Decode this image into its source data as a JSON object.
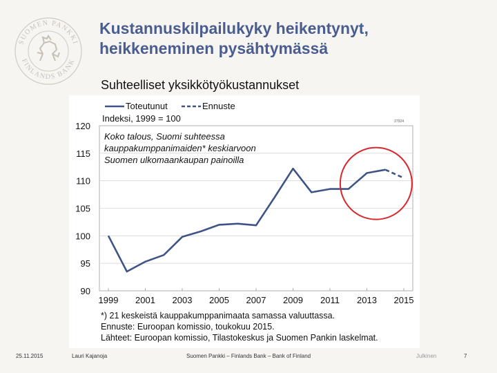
{
  "slide": {
    "title_line1": "Kustannuskilpailukyky heikentynyt,",
    "title_line2": "heikkeneminen pysähtymässä",
    "subtitle": "Suhteelliset yksikkötyökustannukset"
  },
  "logo": {
    "text": "SUOMEN PANKKI · FINLANDS BANK",
    "icon": "lion-emblem-icon",
    "color": "#c9c3ba"
  },
  "footer": {
    "date": "25.11.2015",
    "author": "Lauri Kajanoja",
    "bank": "Suomen Pankki – Finlands Bank – Bank of Finland",
    "unit": "Julkinen",
    "page": "7"
  },
  "chart_data": {
    "type": "line",
    "x": [
      1999,
      2000,
      2001,
      2002,
      2003,
      2004,
      2005,
      2006,
      2007,
      2008,
      2009,
      2010,
      2011,
      2012,
      2013,
      2014,
      2015
    ],
    "series": [
      {
        "name": "Toteutunut",
        "color": "#3e5487",
        "dash": false,
        "points": [
          [
            1999,
            100.0
          ],
          [
            2000,
            93.5
          ],
          [
            2001,
            95.3
          ],
          [
            2002,
            96.5
          ],
          [
            2003,
            99.8
          ],
          [
            2004,
            100.8
          ],
          [
            2005,
            102.0
          ],
          [
            2006,
            102.2
          ],
          [
            2007,
            101.9
          ],
          [
            2008,
            107.0
          ],
          [
            2009,
            112.2
          ],
          [
            2010,
            107.9
          ],
          [
            2011,
            108.5
          ],
          [
            2012,
            108.5
          ],
          [
            2013,
            111.4
          ],
          [
            2014,
            112.0
          ]
        ]
      },
      {
        "name": "Ennuste",
        "color": "#3e5487",
        "dash": true,
        "points": [
          [
            2014,
            112.0
          ],
          [
            2015,
            110.5
          ]
        ]
      }
    ],
    "xticks": [
      "1999",
      "2001",
      "2003",
      "2005",
      "2007",
      "2009",
      "2011",
      "2013",
      "2015"
    ],
    "yticks": [
      "120",
      "115",
      "110",
      "105",
      "100",
      "95",
      "90"
    ],
    "ylim": [
      90,
      120
    ],
    "xlim": [
      1999,
      2015
    ],
    "index_label": "Indeksi, 1999 = 100",
    "annotation_lines": [
      "Koko talous, Suomi suhteessa",
      "kauppakumppanimaiden* keskiarvoon",
      "Suomen ulkomaankaupan painoilla"
    ],
    "chart_code": "27924",
    "notes": [
      "*) 21 keskeistä kauppakumppanimaata samassa valuuttassa.",
      "Ennuste: Euroopan komissio, toukokuu 2015.",
      "Lähteet: Euroopan komissio, Tilastokeskus ja Suomen Pankin laskelmat."
    ],
    "highlight": {
      "shape": "circle",
      "color": "#d8262d",
      "center_year": 2013.5,
      "center_value": 109.5
    },
    "grid": true,
    "legend_position": "top-left"
  }
}
